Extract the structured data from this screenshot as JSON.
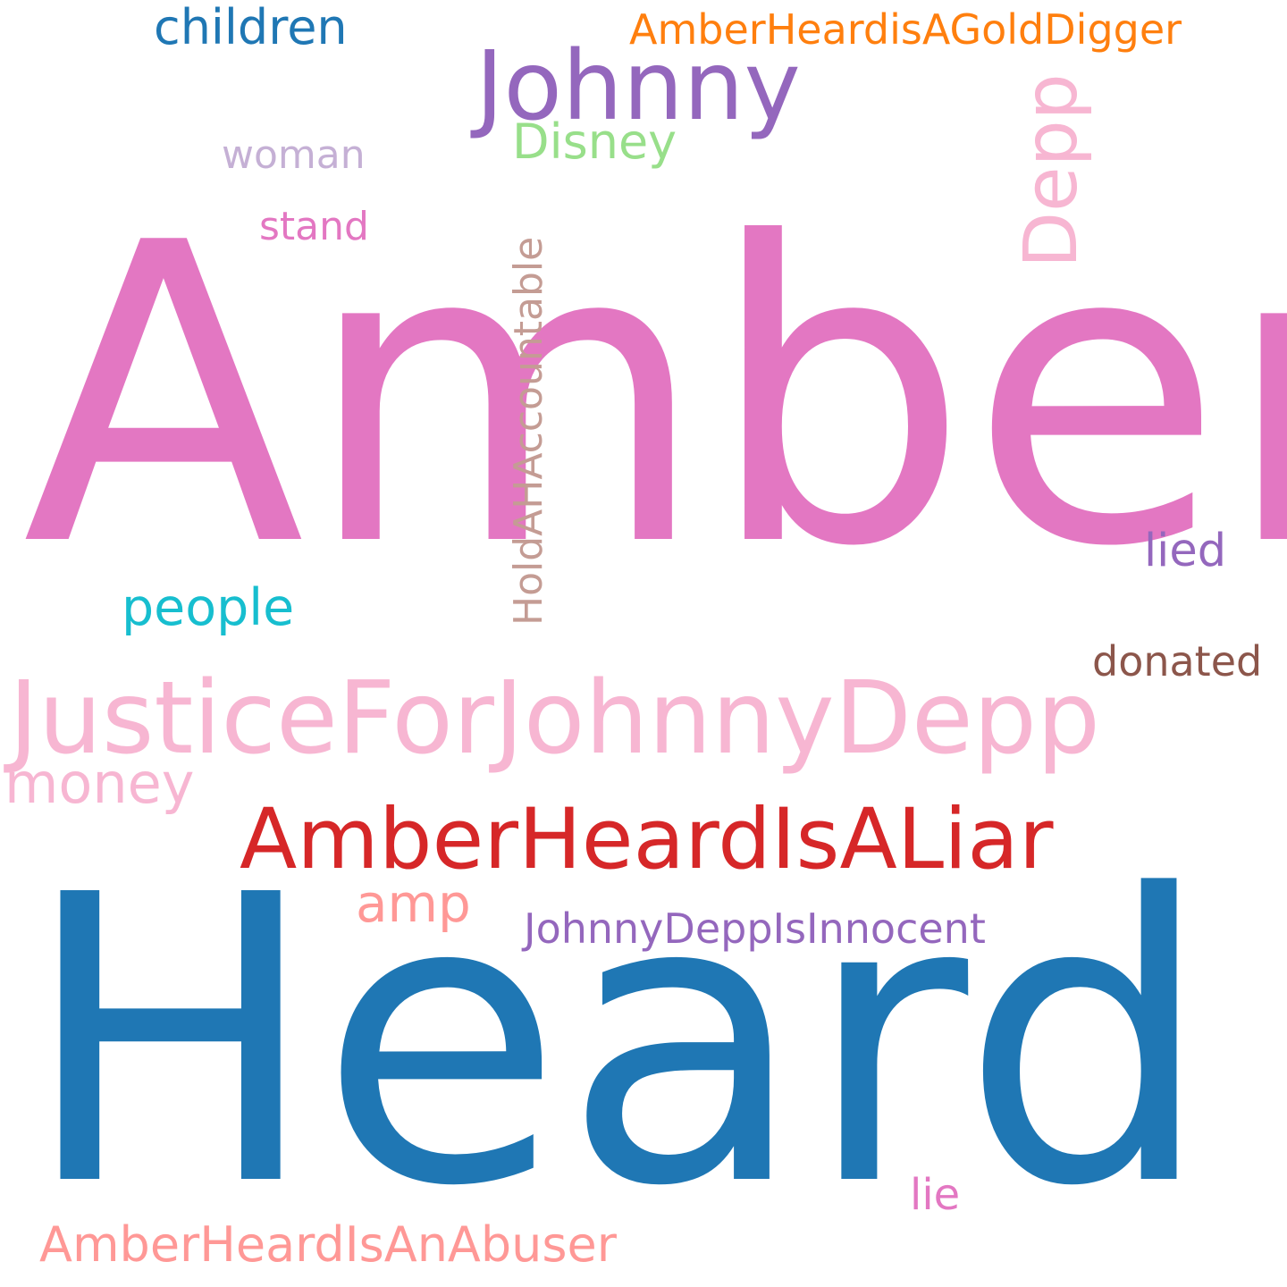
{
  "words": [
    {
      "id": "amber",
      "text": "Amber",
      "color": "#e377c2"
    },
    {
      "id": "heard",
      "text": "Heard",
      "color": "#1f77b4"
    },
    {
      "id": "justice-for-johnny-depp",
      "text": "JusticeForJohnnyDepp",
      "color": "#f7b6d2"
    },
    {
      "id": "amber-heard-is-a-liar",
      "text": "AmberHeardIsALiar",
      "color": "#d62728"
    },
    {
      "id": "johnny",
      "text": "Johnny",
      "color": "#9467bd"
    },
    {
      "id": "depp",
      "text": "Depp",
      "color": "#f7b6d2"
    },
    {
      "id": "amber-heard-is-an-abuser",
      "text": "AmberHeardIsAnAbuser",
      "color": "#ff9896"
    },
    {
      "id": "hold-ah-accountable",
      "text": "HoldAHAccountable",
      "color": "#c49c94"
    },
    {
      "id": "amber-heard-is-a-gold-digger",
      "text": "AmberHeardisAGoldDigger",
      "color": "#ff7f0e"
    },
    {
      "id": "johnny-depp-is-innocent",
      "text": "JohnnyDeppIsInnocent",
      "color": "#9467bd"
    },
    {
      "id": "disney",
      "text": "Disney",
      "color": "#98df8a"
    },
    {
      "id": "children",
      "text": "children",
      "color": "#1f77b4"
    },
    {
      "id": "money",
      "text": "money",
      "color": "#f7b6d2"
    },
    {
      "id": "people",
      "text": "people",
      "color": "#17becf"
    },
    {
      "id": "amp",
      "text": "amp",
      "color": "#ff9896"
    },
    {
      "id": "donated",
      "text": "donated",
      "color": "#8c564b"
    },
    {
      "id": "lied",
      "text": "lied",
      "color": "#9467bd"
    },
    {
      "id": "lie",
      "text": "lie",
      "color": "#e377c2"
    },
    {
      "id": "stand",
      "text": "stand",
      "color": "#e377c2"
    },
    {
      "id": "woman",
      "text": "woman",
      "color": "#c5b0d5"
    }
  ]
}
